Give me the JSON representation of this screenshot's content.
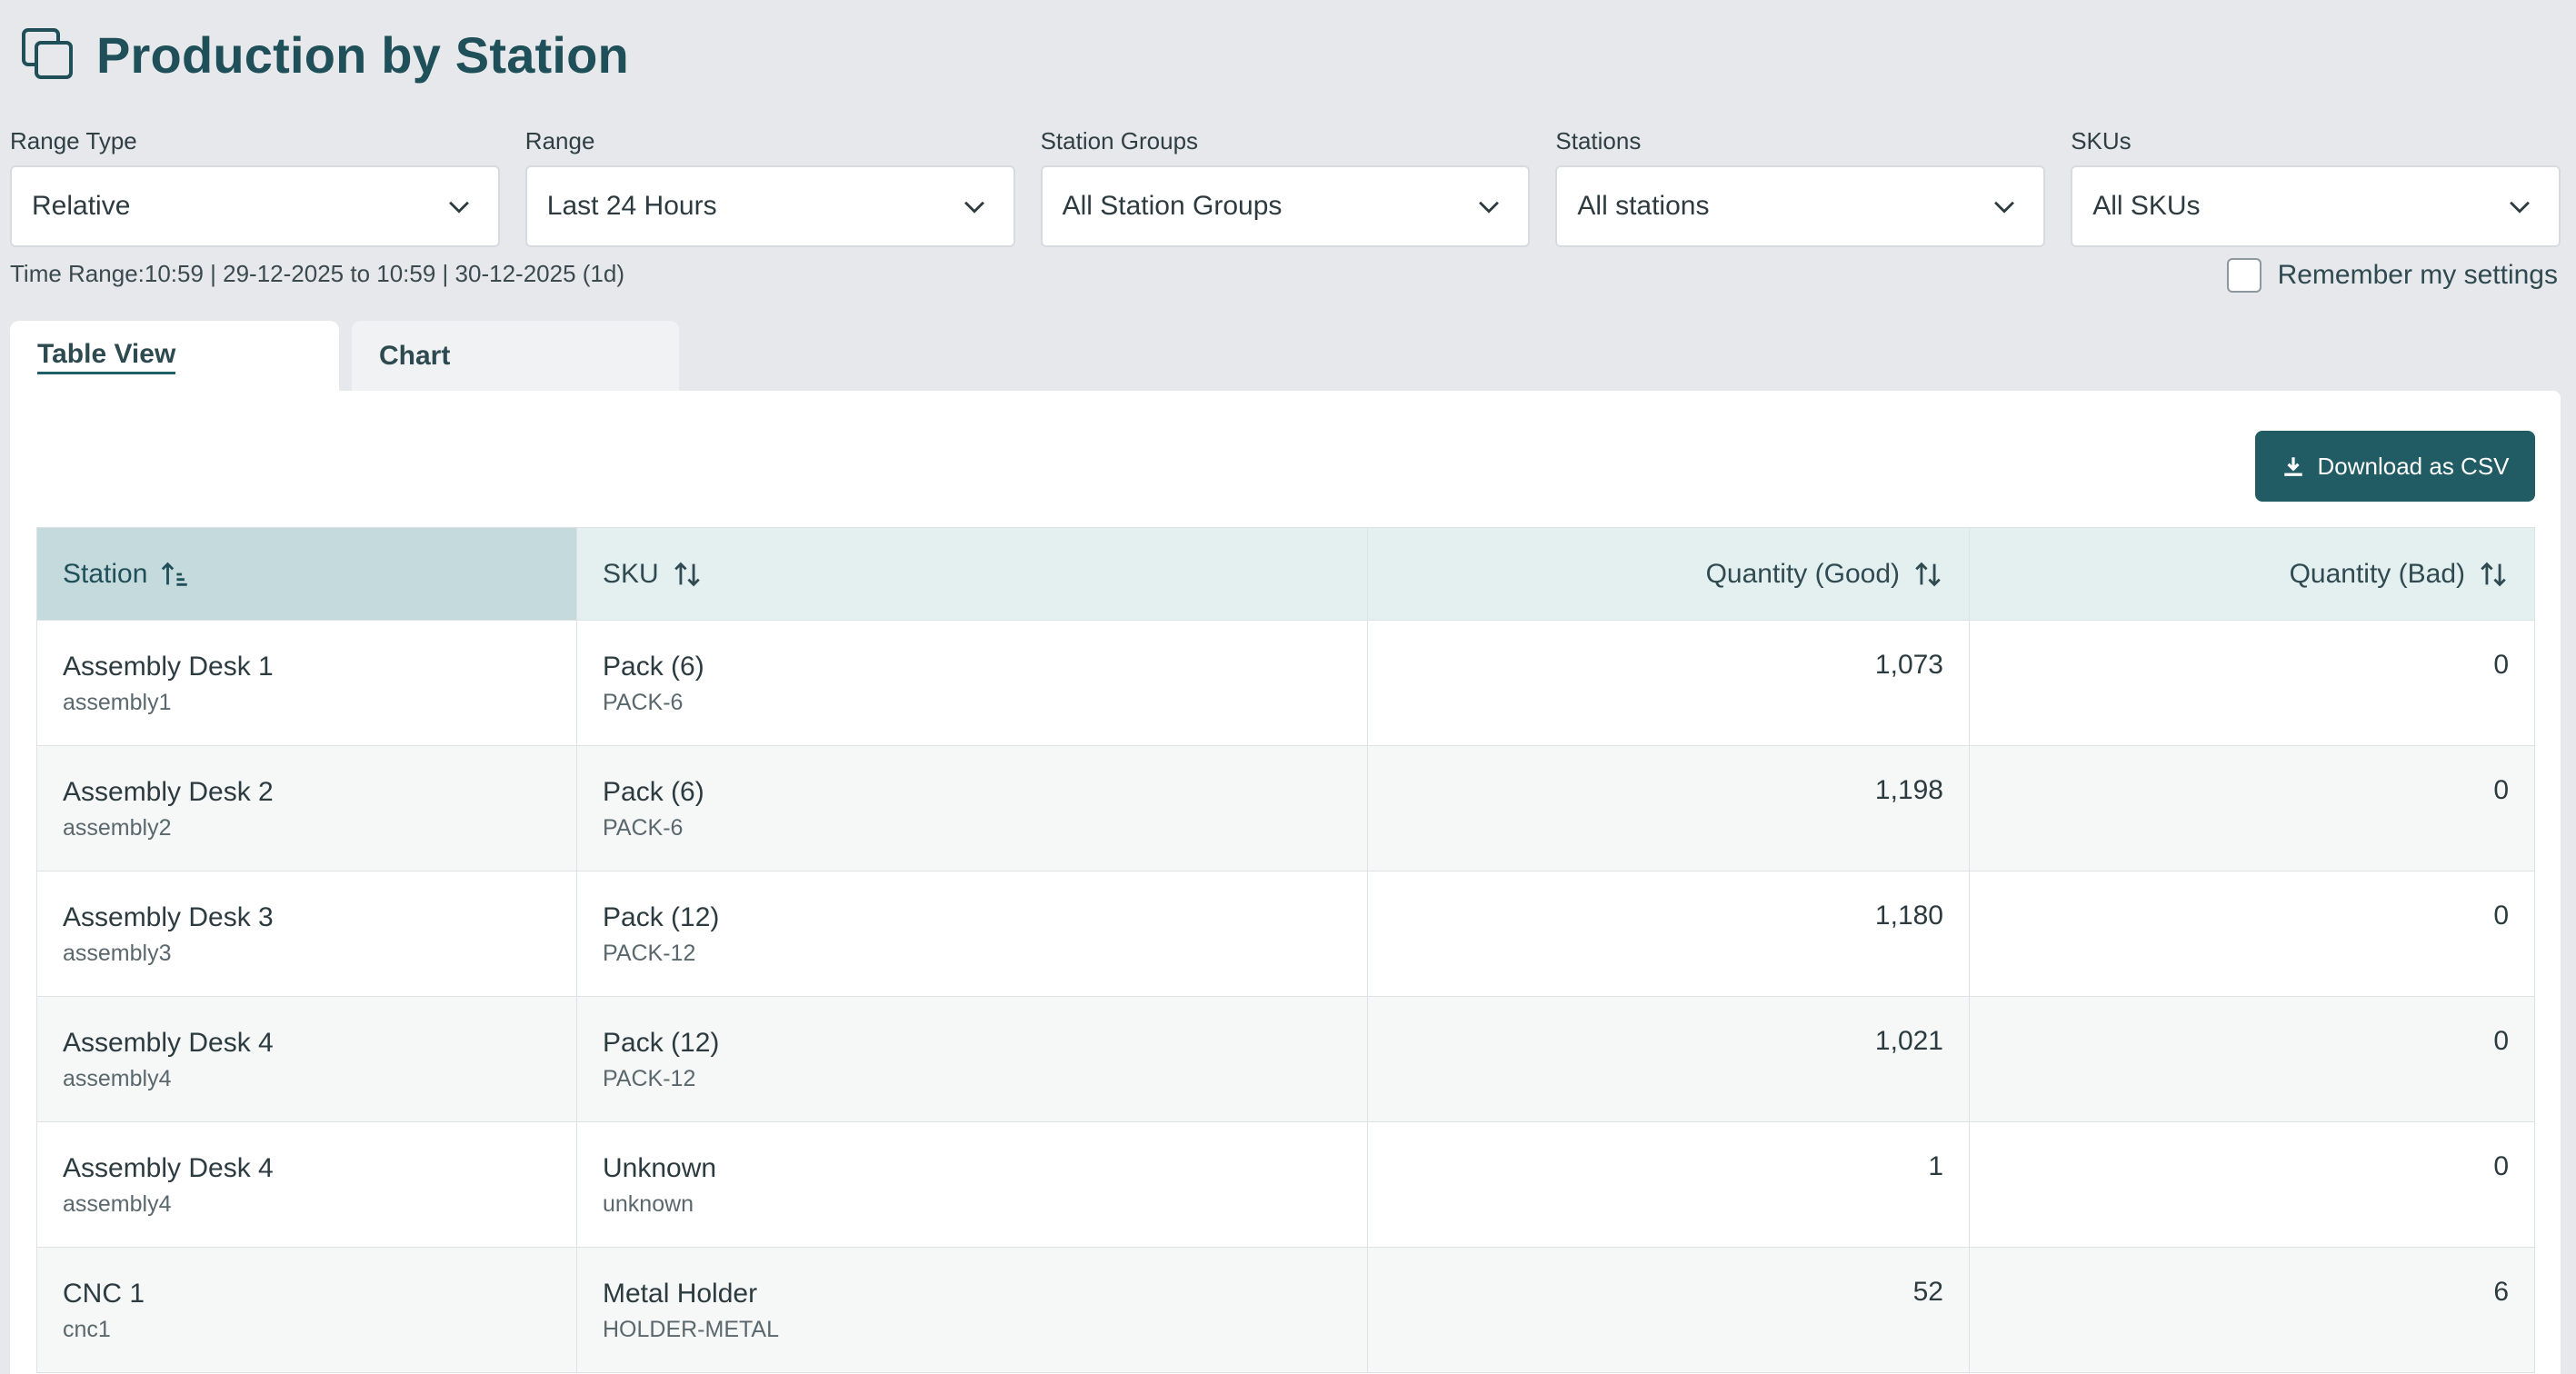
{
  "header": {
    "title": "Production by Station",
    "icon": "copy-icon"
  },
  "filters": [
    {
      "label": "Range Type",
      "value": "Relative"
    },
    {
      "label": "Range",
      "value": "Last 24 Hours"
    },
    {
      "label": "Station Groups",
      "value": "All Station Groups"
    },
    {
      "label": "Stations",
      "value": "All stations"
    },
    {
      "label": "SKUs",
      "value": "All SKUs"
    }
  ],
  "time_range": "Time Range:10:59 | 29-12-2025 to 10:59 | 30-12-2025 (1d)",
  "remember_label": "Remember my settings",
  "tabs": [
    {
      "label": "Table View",
      "active": true
    },
    {
      "label": "Chart",
      "active": false
    }
  ],
  "download_label": "Download as CSV",
  "table": {
    "columns": [
      "Station",
      "SKU",
      "Quantity (Good)",
      "Quantity (Bad)"
    ],
    "rows": [
      {
        "station": "Assembly Desk 1",
        "station_id": "assembly1",
        "sku": "Pack (6)",
        "sku_code": "PACK-6",
        "good": "1,073",
        "bad": "0"
      },
      {
        "station": "Assembly Desk 2",
        "station_id": "assembly2",
        "sku": "Pack (6)",
        "sku_code": "PACK-6",
        "good": "1,198",
        "bad": "0"
      },
      {
        "station": "Assembly Desk 3",
        "station_id": "assembly3",
        "sku": "Pack (12)",
        "sku_code": "PACK-12",
        "good": "1,180",
        "bad": "0"
      },
      {
        "station": "Assembly Desk 4",
        "station_id": "assembly4",
        "sku": "Pack (12)",
        "sku_code": "PACK-12",
        "good": "1,021",
        "bad": "0"
      },
      {
        "station": "Assembly Desk 4",
        "station_id": "assembly4",
        "sku": "Unknown",
        "sku_code": "unknown",
        "good": "1",
        "bad": "0"
      },
      {
        "station": "CNC 1",
        "station_id": "cnc1",
        "sku": "Metal Holder",
        "sku_code": "HOLDER-METAL",
        "good": "52",
        "bad": "6"
      }
    ]
  },
  "colors": {
    "accent": "#215b63",
    "title": "#1f4f58",
    "header_bg": "#e4eff0",
    "sorted_header_bg": "#c5dadd"
  }
}
